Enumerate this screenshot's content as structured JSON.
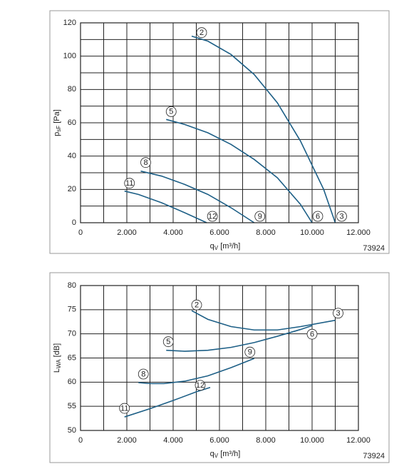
{
  "chart_data": [
    {
      "type": "line",
      "x_label": {
        "main": "q",
        "sub": "V",
        "rest": " [m³/h]"
      },
      "y_label": {
        "main": "p",
        "sub": "sF",
        "rest": " [Pa]"
      },
      "note": "73924",
      "xlim": [
        0,
        12000
      ],
      "xticks": [
        0,
        {
          "value": 2000,
          "label": "2.000"
        },
        {
          "value": 4000,
          "label": "4.000"
        },
        {
          "value": 6000,
          "label": "6.000"
        },
        {
          "value": 8000,
          "label": "8.000"
        },
        {
          "value": 10000,
          "label": "10.000"
        },
        {
          "value": 12000,
          "label": "12.000"
        }
      ],
      "xgrid": [
        0,
        1000,
        2000,
        3000,
        4000,
        5000,
        6000,
        7000,
        8000,
        9000,
        10000,
        11000,
        12000
      ],
      "ylim": [
        0,
        120
      ],
      "yticks": [
        0,
        20,
        40,
        60,
        80,
        100,
        120
      ],
      "ygrid": [
        0,
        10,
        20,
        30,
        40,
        50,
        60,
        70,
        80,
        90,
        100,
        110,
        120
      ],
      "series": [
        {
          "name": "2",
          "end_name": "3",
          "color": "#1d5f86",
          "x": [
            4800,
            5500,
            6500,
            7500,
            8500,
            9500,
            10500,
            11000
          ],
          "values": [
            112,
            109,
            101,
            89,
            72,
            49,
            20,
            0
          ]
        },
        {
          "name": "5",
          "end_name": "6",
          "color": "#1d5f86",
          "x": [
            3700,
            4500,
            5500,
            6500,
            7500,
            8500,
            9500,
            10000
          ],
          "values": [
            62,
            59,
            54,
            47,
            38,
            27,
            11,
            0
          ]
        },
        {
          "name": "8",
          "end_name": "9",
          "color": "#1d5f86",
          "x": [
            2600,
            3500,
            4500,
            5500,
            6500,
            7500
          ],
          "values": [
            31,
            28,
            23,
            17,
            9,
            0
          ]
        },
        {
          "name": "11",
          "end_name": "12",
          "color": "#1d5f86",
          "x": [
            1900,
            2500,
            3500,
            4500,
            5450
          ],
          "values": [
            19,
            17,
            12,
            6,
            0
          ]
        }
      ]
    },
    {
      "type": "line",
      "x_label": {
        "main": "q",
        "sub": "V",
        "rest": " [m³/h]"
      },
      "y_label": {
        "main": "L",
        "sub": "WA",
        "rest": " [dB]"
      },
      "note": "73924",
      "xlim": [
        0,
        12000
      ],
      "xticks": [
        0,
        {
          "value": 2000,
          "label": "2.000"
        },
        {
          "value": 4000,
          "label": "4.000"
        },
        {
          "value": 6000,
          "label": "6.000"
        },
        {
          "value": 8000,
          "label": "8.000"
        },
        {
          "value": 10000,
          "label": "10.000"
        },
        {
          "value": 12000,
          "label": "12.000"
        }
      ],
      "xgrid": [
        0,
        1000,
        2000,
        3000,
        4000,
        5000,
        6000,
        7000,
        8000,
        9000,
        10000,
        11000,
        12000
      ],
      "ylim": [
        50,
        80
      ],
      "yticks": [
        50,
        55,
        60,
        65,
        70,
        75,
        80
      ],
      "ygrid": [
        50,
        55,
        60,
        65,
        70,
        75,
        80
      ],
      "series": [
        {
          "name": "2",
          "end_name": "3",
          "color": "#1d5f86",
          "x": [
            4800,
            5500,
            6500,
            7500,
            8500,
            9500,
            11000
          ],
          "values": [
            74.8,
            73,
            71.5,
            70.8,
            70.8,
            71.5,
            72.8
          ]
        },
        {
          "name": "5",
          "end_name": "6",
          "color": "#1d5f86",
          "x": [
            3700,
            4500,
            5500,
            6500,
            7500,
            8500,
            9500,
            10000
          ],
          "values": [
            66.6,
            66.4,
            66.6,
            67.2,
            68.2,
            69.5,
            70.9,
            71.7
          ]
        },
        {
          "name": "8",
          "end_name": "9",
          "color": "#1d5f86",
          "x": [
            2500,
            3000,
            3600,
            4500,
            5500,
            6500,
            7500
          ],
          "values": [
            59.9,
            59.7,
            59.7,
            60.2,
            61.3,
            63,
            64.9
          ]
        },
        {
          "name": "11",
          "end_name": "12",
          "color": "#1d5f86",
          "x": [
            1900,
            3000,
            4000,
            5000,
            5600
          ],
          "values": [
            52.8,
            54.5,
            56.2,
            58,
            58.9
          ]
        }
      ]
    }
  ]
}
